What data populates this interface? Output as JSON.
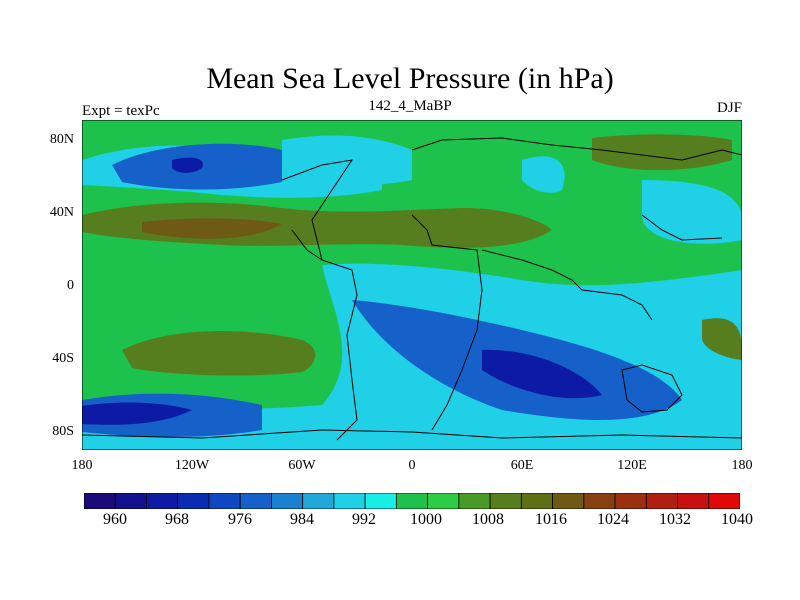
{
  "title": "Mean Sea Level Pressure (in hPa)",
  "subtitle_left": "Expt = texPc",
  "subtitle_center": "142_4_MaBP",
  "subtitle_right": "DJF",
  "y_axis_labels": [
    "80N",
    "40N",
    "0",
    "40S",
    "80S"
  ],
  "x_axis_labels": [
    "180",
    "120W",
    "60W",
    "0",
    "60E",
    "120E",
    "180"
  ],
  "colorbar": {
    "labels": [
      "960",
      "968",
      "976",
      "984",
      "992",
      "1000",
      "1008",
      "1016",
      "1024",
      "1032",
      "1040"
    ],
    "colors": [
      "#1a0a7a",
      "#12118f",
      "#0d1aa3",
      "#0a2bb3",
      "#0f46c2",
      "#1560c9",
      "#1a80cf",
      "#22a8d8",
      "#1fd0e6",
      "#18eee6",
      "#1dc24c",
      "#2ccc44",
      "#4a9a28",
      "#567e1e",
      "#5e6f18",
      "#6e5a14",
      "#874012",
      "#9a3010",
      "#b02010",
      "#c81010",
      "#e00808"
    ]
  },
  "colors": {
    "background": "#1dc24c",
    "low_deep": "#0d1aa3",
    "low": "#1560c9",
    "mid_low": "#1fd0e6",
    "high": "#567e1e"
  }
}
